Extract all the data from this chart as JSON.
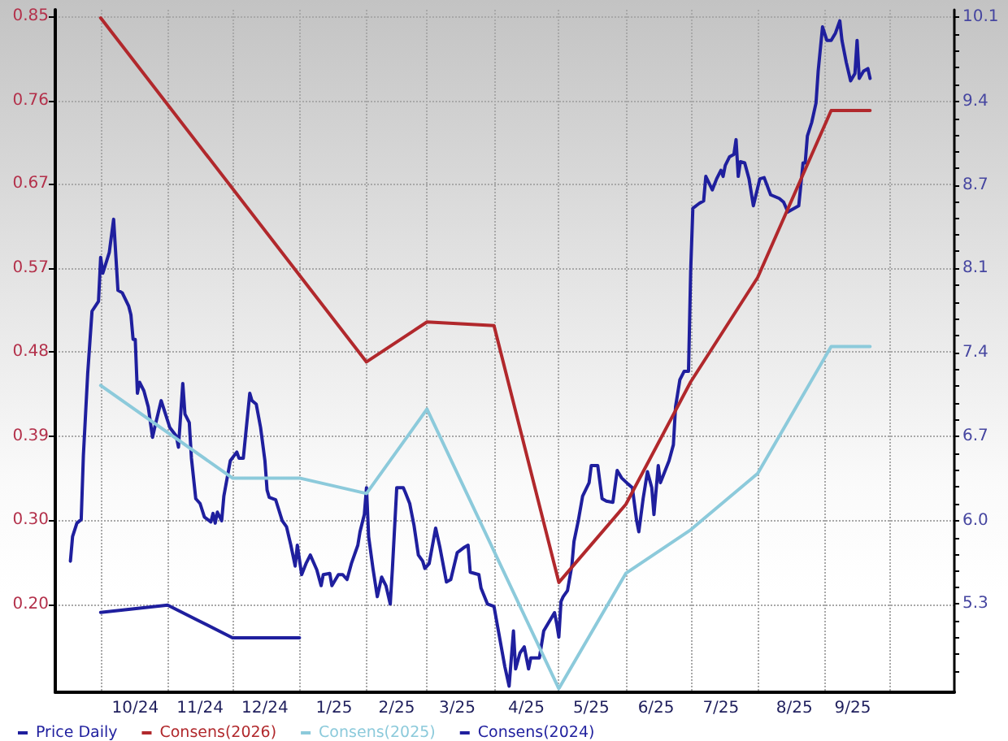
{
  "chart_data": {
    "type": "line",
    "series": [
      {
        "name": "Price Daily",
        "color": "#1f1f9e",
        "axis": "y2",
        "x": [
          "2024-09-17",
          "2024-09-18",
          "2024-09-20",
          "2024-09-22",
          "2024-09-23",
          "2024-09-25",
          "2024-09-27",
          "2024-09-30",
          "2024-10-01",
          "2024-10-02",
          "2024-10-05",
          "2024-10-07",
          "2024-10-09",
          "2024-10-11",
          "2024-10-14",
          "2024-10-15",
          "2024-10-16",
          "2024-10-17",
          "2024-10-18",
          "2024-10-19",
          "2024-10-21",
          "2024-10-23",
          "2024-10-25",
          "2024-10-26",
          "2024-10-29",
          "2024-10-31",
          "2024-11-02",
          "2024-11-05",
          "2024-11-06",
          "2024-11-08",
          "2024-11-09",
          "2024-11-11",
          "2024-11-12",
          "2024-11-14",
          "2024-11-16",
          "2024-11-18",
          "2024-11-21",
          "2024-11-22",
          "2024-11-23",
          "2024-11-24",
          "2024-11-26",
          "2024-11-27",
          "2024-11-30",
          "2024-12-03",
          "2024-12-04",
          "2024-12-06",
          "2024-12-09",
          "2024-12-10",
          "2024-12-12",
          "2024-12-14",
          "2024-12-16",
          "2024-12-17",
          "2024-12-18",
          "2024-12-21",
          "2024-12-24",
          "2024-12-26",
          "2024-12-28",
          "2024-12-30",
          "2024-12-31",
          "2025-01-02",
          "2025-01-04",
          "2025-01-06",
          "2025-01-09",
          "2025-01-11",
          "2025-01-12",
          "2025-01-15",
          "2025-01-16",
          "2025-01-19",
          "2025-01-21",
          "2025-01-23",
          "2025-01-25",
          "2025-01-28",
          "2025-01-29",
          "2025-01-31",
          "2025-02-01",
          "2025-02-02",
          "2025-02-04",
          "2025-02-06",
          "2025-02-08",
          "2025-02-10",
          "2025-02-12",
          "2025-02-13",
          "2025-02-15",
          "2025-02-18",
          "2025-02-19",
          "2025-02-21",
          "2025-02-23",
          "2025-02-25",
          "2025-02-27",
          "2025-02-28",
          "2025-03-02",
          "2025-03-05",
          "2025-03-07",
          "2025-03-10",
          "2025-03-12",
          "2025-03-15",
          "2025-03-18",
          "2025-03-20",
          "2025-03-21",
          "2025-03-25",
          "2025-03-26",
          "2025-03-29",
          "2025-04-01",
          "2025-04-06",
          "2025-04-08",
          "2025-04-10",
          "2025-04-11",
          "2025-04-13",
          "2025-04-15",
          "2025-04-17",
          "2025-04-18",
          "2025-04-22",
          "2025-04-24",
          "2025-04-26",
          "2025-04-29",
          "2025-04-30",
          "2025-05-01",
          "2025-05-02",
          "2025-05-03",
          "2025-05-05",
          "2025-05-07",
          "2025-05-08",
          "2025-05-10",
          "2025-05-12",
          "2025-05-15",
          "2025-05-16",
          "2025-05-19",
          "2025-05-21",
          "2025-05-23",
          "2025-05-26",
          "2025-05-28",
          "2025-05-30",
          "2025-06-02",
          "2025-06-04",
          "2025-06-06",
          "2025-06-07",
          "2025-06-09",
          "2025-06-11",
          "2025-06-13",
          "2025-06-14",
          "2025-06-16",
          "2025-06-17",
          "2025-06-19",
          "2025-06-21",
          "2025-06-23",
          "2025-06-24",
          "2025-06-26",
          "2025-06-28",
          "2025-06-30",
          "2025-07-01",
          "2025-07-02",
          "2025-07-05",
          "2025-07-07",
          "2025-07-08",
          "2025-07-11",
          "2025-07-13",
          "2025-07-15",
          "2025-07-16",
          "2025-07-17",
          "2025-07-19",
          "2025-07-21",
          "2025-07-22",
          "2025-07-23",
          "2025-07-24",
          "2025-07-26",
          "2025-07-28",
          "2025-07-30",
          "2025-08-02",
          "2025-08-04",
          "2025-08-07",
          "2025-08-11",
          "2025-08-13",
          "2025-08-15",
          "2025-08-18",
          "2025-08-20",
          "2025-08-22",
          "2025-08-23",
          "2025-08-24",
          "2025-08-26",
          "2025-08-28",
          "2025-08-29",
          "2025-08-31",
          "2025-09-02",
          "2025-09-04",
          "2025-09-06",
          "2025-09-08",
          "2025-09-09",
          "2025-09-11",
          "2025-09-13",
          "2025-09-15",
          "2025-09-16",
          "2025-09-17",
          "2025-09-19",
          "2025-09-21",
          "2025-09-22"
        ],
        "values": [
          5.67,
          5.87,
          5.98,
          6.01,
          6.53,
          7.2,
          7.71,
          7.79,
          8.15,
          8.02,
          8.19,
          8.46,
          7.88,
          7.86,
          7.75,
          7.68,
          7.48,
          7.48,
          7.04,
          7.13,
          7.06,
          6.93,
          6.68,
          6.76,
          6.98,
          6.87,
          6.76,
          6.69,
          6.6,
          7.12,
          6.87,
          6.8,
          6.51,
          6.18,
          6.14,
          6.03,
          5.99,
          6.06,
          5.98,
          6.07,
          6.0,
          6.2,
          6.49,
          6.56,
          6.51,
          6.51,
          7.04,
          6.98,
          6.95,
          6.76,
          6.49,
          6.25,
          6.19,
          6.17,
          6.0,
          5.95,
          5.8,
          5.63,
          5.8,
          5.56,
          5.65,
          5.72,
          5.6,
          5.47,
          5.56,
          5.57,
          5.47,
          5.56,
          5.56,
          5.52,
          5.65,
          5.8,
          5.91,
          6.05,
          6.27,
          5.87,
          5.61,
          5.38,
          5.54,
          5.47,
          5.32,
          5.61,
          6.27,
          6.27,
          6.23,
          6.14,
          5.96,
          5.72,
          5.67,
          5.61,
          5.65,
          5.94,
          5.78,
          5.5,
          5.52,
          5.74,
          5.78,
          5.8,
          5.58,
          5.56,
          5.45,
          5.32,
          5.3,
          4.81,
          4.65,
          5.1,
          4.79,
          4.92,
          4.97,
          4.79,
          4.88,
          4.88,
          5.1,
          5.16,
          5.25,
          5.16,
          5.05,
          5.34,
          5.38,
          5.43,
          5.63,
          5.83,
          6.0,
          6.2,
          6.31,
          6.45,
          6.45,
          6.18,
          6.16,
          6.15,
          6.41,
          6.35,
          6.3,
          6.27,
          6.0,
          5.91,
          6.18,
          6.4,
          6.27,
          6.05,
          6.45,
          6.31,
          6.4,
          6.49,
          6.62,
          6.93,
          7.15,
          7.22,
          7.22,
          8.04,
          8.55,
          8.59,
          8.61,
          8.81,
          8.7,
          8.79,
          8.86,
          8.81,
          8.9,
          8.97,
          8.99,
          9.11,
          8.81,
          8.93,
          8.92,
          8.79,
          8.57,
          8.79,
          8.8,
          8.66,
          8.63,
          8.6,
          8.52,
          8.55,
          8.57,
          8.92,
          8.92,
          9.14,
          9.25,
          9.41,
          9.67,
          10.03,
          9.92,
          9.92,
          9.98,
          10.08,
          9.92,
          9.74,
          9.59,
          9.65,
          9.92,
          9.61,
          9.67,
          9.69,
          9.61
        ]
      },
      {
        "name": "Consens(2026)",
        "color": "#b1282c",
        "x": [
          "2024-10-01",
          "2025-02-01",
          "2025-03-01",
          "2025-04-01",
          "2025-05-01",
          "2025-06-01",
          "2025-07-01",
          "2025-08-01",
          "2025-09-04",
          "2025-09-22"
        ],
        "values": [
          0.85,
          0.471,
          0.515,
          0.511,
          0.228,
          0.314,
          0.449,
          0.564,
          0.748,
          0.748
        ]
      },
      {
        "name": "Consens(2025)",
        "color": "#8ccadb",
        "x": [
          "2024-10-01",
          "2024-12-01",
          "2025-01-01",
          "2025-02-01",
          "2025-03-01",
          "2025-05-01",
          "2025-06-01",
          "2025-07-01",
          "2025-08-01",
          "2025-09-04",
          "2025-09-22"
        ],
        "values": [
          0.445,
          0.343,
          0.343,
          0.326,
          0.419,
          0.111,
          0.238,
          0.286,
          0.348,
          0.488,
          0.488
        ]
      },
      {
        "name": "Consens(2024)",
        "color": "#1f1f9e",
        "x": [
          "2024-10-01",
          "2024-11-01",
          "2024-12-01",
          "2025-01-01"
        ],
        "values": [
          0.195,
          0.203,
          0.167,
          0.167
        ]
      }
    ],
    "xlim": [
      "2024-09-10",
      "2025-10-31"
    ],
    "xticks": [
      {
        "value": "2024-10-01",
        "label": null
      },
      {
        "value": "2024-10-17",
        "label": "10/24"
      },
      {
        "value": "2024-11-01",
        "label": null
      },
      {
        "value": "2024-11-16",
        "label": "11/24"
      },
      {
        "value": "2024-12-01",
        "label": null
      },
      {
        "value": "2024-12-16",
        "label": "12/24"
      },
      {
        "value": "2025-01-01",
        "label": null
      },
      {
        "value": "2025-01-17",
        "label": "1/25"
      },
      {
        "value": "2025-02-01",
        "label": null
      },
      {
        "value": "2025-02-15",
        "label": "2/25"
      },
      {
        "value": "2025-03-01",
        "label": null
      },
      {
        "value": "2025-03-15",
        "label": "3/25"
      },
      {
        "value": "2025-04-01",
        "label": null
      },
      {
        "value": "2025-04-16",
        "label": "4/25"
      },
      {
        "value": "2025-05-01",
        "label": null
      },
      {
        "value": "2025-05-16",
        "label": "5/25"
      },
      {
        "value": "2025-06-01",
        "label": null
      },
      {
        "value": "2025-06-15",
        "label": "6/25"
      },
      {
        "value": "2025-07-01",
        "label": null
      },
      {
        "value": "2025-07-15",
        "label": "7/25"
      },
      {
        "value": "2025-08-01",
        "label": null
      },
      {
        "value": "2025-08-18",
        "label": "8/25"
      },
      {
        "value": "2025-09-01",
        "label": null
      },
      {
        "value": "2025-09-14",
        "label": "9/25"
      },
      {
        "value": "2025-10-01",
        "label": null
      }
    ],
    "ylim": [
      0.107,
      0.859
    ],
    "yticks": [
      {
        "value": 0.204,
        "label": "0.20"
      },
      {
        "value": 0.297,
        "label": "0.30"
      },
      {
        "value": 0.389,
        "label": "0.39"
      },
      {
        "value": 0.482,
        "label": "0.48"
      },
      {
        "value": 0.574,
        "label": "0.57"
      },
      {
        "value": 0.667,
        "label": "0.67"
      },
      {
        "value": 0.759,
        "label": "0.76"
      },
      {
        "value": 0.852,
        "label": "0.85"
      }
    ],
    "y2lim": [
      4.6,
      10.17
    ],
    "y2ticks": [
      {
        "value": 4.77,
        "label": null
      },
      {
        "value": 4.91,
        "label": null
      },
      {
        "value": 5.05,
        "label": null
      },
      {
        "value": 5.18,
        "label": null
      },
      {
        "value": 5.32,
        "label": "5.3"
      },
      {
        "value": 5.46,
        "label": null
      },
      {
        "value": 5.59,
        "label": null
      },
      {
        "value": 5.73,
        "label": null
      },
      {
        "value": 5.86,
        "label": null
      },
      {
        "value": 6.0,
        "label": "6.0"
      },
      {
        "value": 6.14,
        "label": null
      },
      {
        "value": 6.28,
        "label": null
      },
      {
        "value": 6.41,
        "label": null
      },
      {
        "value": 6.55,
        "label": null
      },
      {
        "value": 6.69,
        "label": "6.7"
      },
      {
        "value": 6.83,
        "label": null
      },
      {
        "value": 6.96,
        "label": null
      },
      {
        "value": 7.1,
        "label": null
      },
      {
        "value": 7.23,
        "label": null
      },
      {
        "value": 7.37,
        "label": "7.4"
      },
      {
        "value": 7.51,
        "label": null
      },
      {
        "value": 7.65,
        "label": null
      },
      {
        "value": 7.78,
        "label": null
      },
      {
        "value": 7.92,
        "label": null
      },
      {
        "value": 8.06,
        "label": "8.1"
      },
      {
        "value": 8.2,
        "label": null
      },
      {
        "value": 8.33,
        "label": null
      },
      {
        "value": 8.47,
        "label": null
      },
      {
        "value": 8.6,
        "label": null
      },
      {
        "value": 8.74,
        "label": "8.7"
      },
      {
        "value": 8.88,
        "label": null
      },
      {
        "value": 9.01,
        "label": null
      },
      {
        "value": 9.15,
        "label": null
      },
      {
        "value": 9.28,
        "label": null
      },
      {
        "value": 9.42,
        "label": "9.4"
      },
      {
        "value": 9.56,
        "label": null
      },
      {
        "value": 9.7,
        "label": null
      },
      {
        "value": 9.83,
        "label": null
      },
      {
        "value": 9.97,
        "label": null
      },
      {
        "value": 10.11,
        "label": "10.1"
      }
    ],
    "grid": true,
    "legend": "bottom left",
    "marker": "none",
    "line_style": "solid"
  }
}
